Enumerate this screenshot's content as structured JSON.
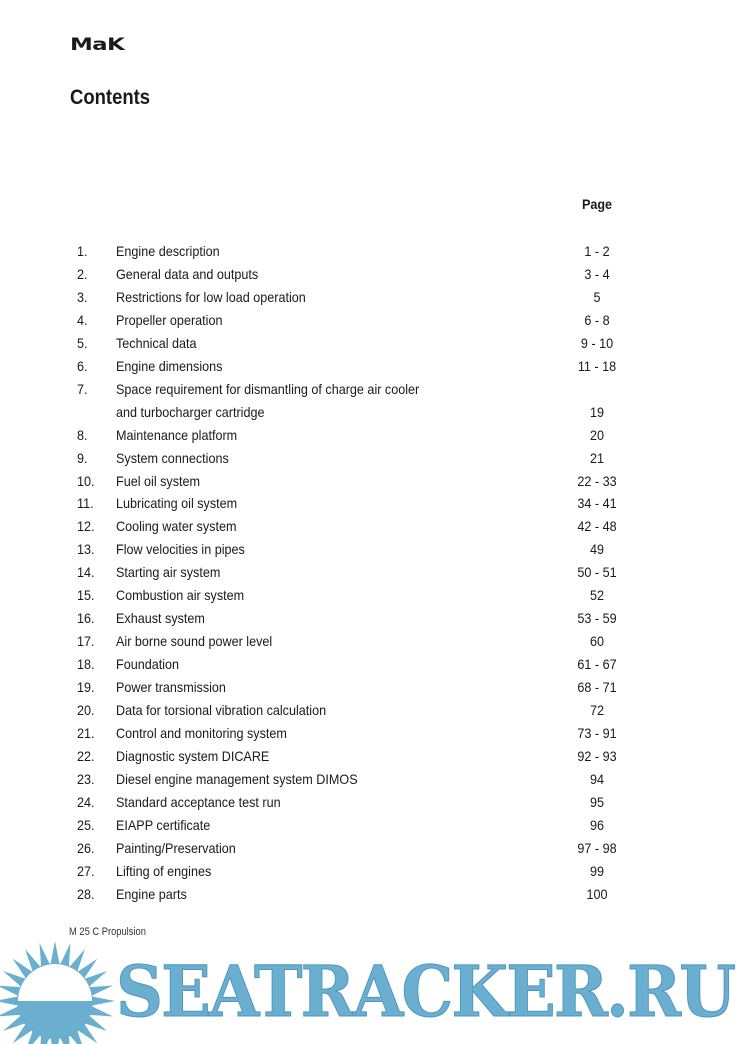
{
  "header": {
    "logo": "MaK",
    "title": "Contents",
    "page_column_label": "Page"
  },
  "entries": [
    {
      "num": "1.",
      "lines": [
        "Engine description"
      ],
      "page": "1 - 2"
    },
    {
      "num": "2.",
      "lines": [
        "General data and outputs"
      ],
      "page": "3 - 4"
    },
    {
      "num": "3.",
      "lines": [
        "Restrictions for low load operation"
      ],
      "page": "5"
    },
    {
      "num": "4.",
      "lines": [
        "Propeller operation"
      ],
      "page": "6 - 8"
    },
    {
      "num": "5.",
      "lines": [
        "Technical data"
      ],
      "page": "9 - 10"
    },
    {
      "num": "6.",
      "lines": [
        "Engine dimensions"
      ],
      "page": "11 - 18"
    },
    {
      "num": "7.",
      "lines": [
        "Space requirement for dismantling of charge air cooler",
        "and turbocharger cartridge"
      ],
      "page": "19"
    },
    {
      "num": "8.",
      "lines": [
        "Maintenance platform"
      ],
      "page": "20"
    },
    {
      "num": "9.",
      "lines": [
        "System connections"
      ],
      "page": "21"
    },
    {
      "num": "10.",
      "lines": [
        "Fuel  oil system"
      ],
      "page": "22 - 33"
    },
    {
      "num": "11.",
      "lines": [
        "Lubricating oil system"
      ],
      "page": "34 - 41"
    },
    {
      "num": "12.",
      "lines": [
        "Cooling water system"
      ],
      "page": "42 - 48"
    },
    {
      "num": "13.",
      "lines": [
        "Flow velocities in pipes"
      ],
      "page": "49"
    },
    {
      "num": "14.",
      "lines": [
        "Starting air system"
      ],
      "page": "50 - 51"
    },
    {
      "num": "15.",
      "lines": [
        "Combustion air system"
      ],
      "page": "52"
    },
    {
      "num": "16.",
      "lines": [
        "Exhaust system"
      ],
      "page": "53 - 59"
    },
    {
      "num": "17.",
      "lines": [
        "Air borne sound power level"
      ],
      "page": "60"
    },
    {
      "num": "18.",
      "lines": [
        "Foundation"
      ],
      "page": "61 - 67"
    },
    {
      "num": "19.",
      "lines": [
        "Power transmission"
      ],
      "page": "68 - 71"
    },
    {
      "num": "20.",
      "lines": [
        "Data for torsional vibration calculation"
      ],
      "page": "72"
    },
    {
      "num": "21.",
      "lines": [
        "Control and monitoring system"
      ],
      "page": "73 - 91"
    },
    {
      "num": "22.",
      "lines": [
        "Diagnostic system DICARE"
      ],
      "page": "92 - 93"
    },
    {
      "num": "23.",
      "lines": [
        "Diesel engine management system DIMOS"
      ],
      "page": "94"
    },
    {
      "num": "24.",
      "lines": [
        "Standard acceptance test run"
      ],
      "page": "95"
    },
    {
      "num": "25.",
      "lines": [
        "EIAPP certificate"
      ],
      "page": "96"
    },
    {
      "num": "26.",
      "lines": [
        "Painting/Preservation"
      ],
      "page": "97 - 98"
    },
    {
      "num": "27.",
      "lines": [
        "Lifting of engines"
      ],
      "page": "99"
    },
    {
      "num": "28.",
      "lines": [
        "Engine parts"
      ],
      "page": "100"
    }
  ],
  "footer": {
    "text": "M 25 C Propulsion"
  },
  "watermark": {
    "text": "SEATRACKER.RU",
    "color": "#6aaed0"
  }
}
